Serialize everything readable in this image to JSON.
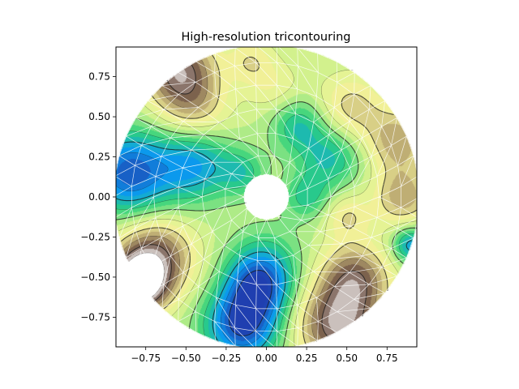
{
  "chart_data": {
    "type": "heatmap",
    "title": "High-resolution tricontouring",
    "xlabel": "",
    "ylabel": "",
    "xlim": [
      -0.935,
      0.935
    ],
    "ylim": [
      -0.935,
      0.935
    ],
    "xticks": [
      -0.75,
      -0.5,
      -0.25,
      0.0,
      0.25,
      0.5,
      0.75
    ],
    "yticks": [
      -0.75,
      -0.5,
      -0.25,
      0.0,
      0.25,
      0.5,
      0.75
    ],
    "xtick_labels": [
      "−0.75",
      "−0.50",
      "−0.25",
      "0.00",
      "0.25",
      "0.50",
      "0.75"
    ],
    "ytick_labels": [
      "−0.75",
      "−0.50",
      "−0.25",
      "0.00",
      "0.25",
      "0.50",
      "0.75"
    ],
    "domain": {
      "shape": "annulus",
      "outer_radius": 0.95,
      "inner_radius": 0.14
    },
    "colormap": [
      "#1f3fb0",
      "#0a9ef0",
      "#2dd17a",
      "#c8f08a",
      "#f5f59a",
      "#bba871",
      "#6b4f43",
      "#ffffff"
    ],
    "mesh_color": "#ffffff",
    "contour_color": "#1a1a1a",
    "grid": false,
    "legend": "none"
  }
}
